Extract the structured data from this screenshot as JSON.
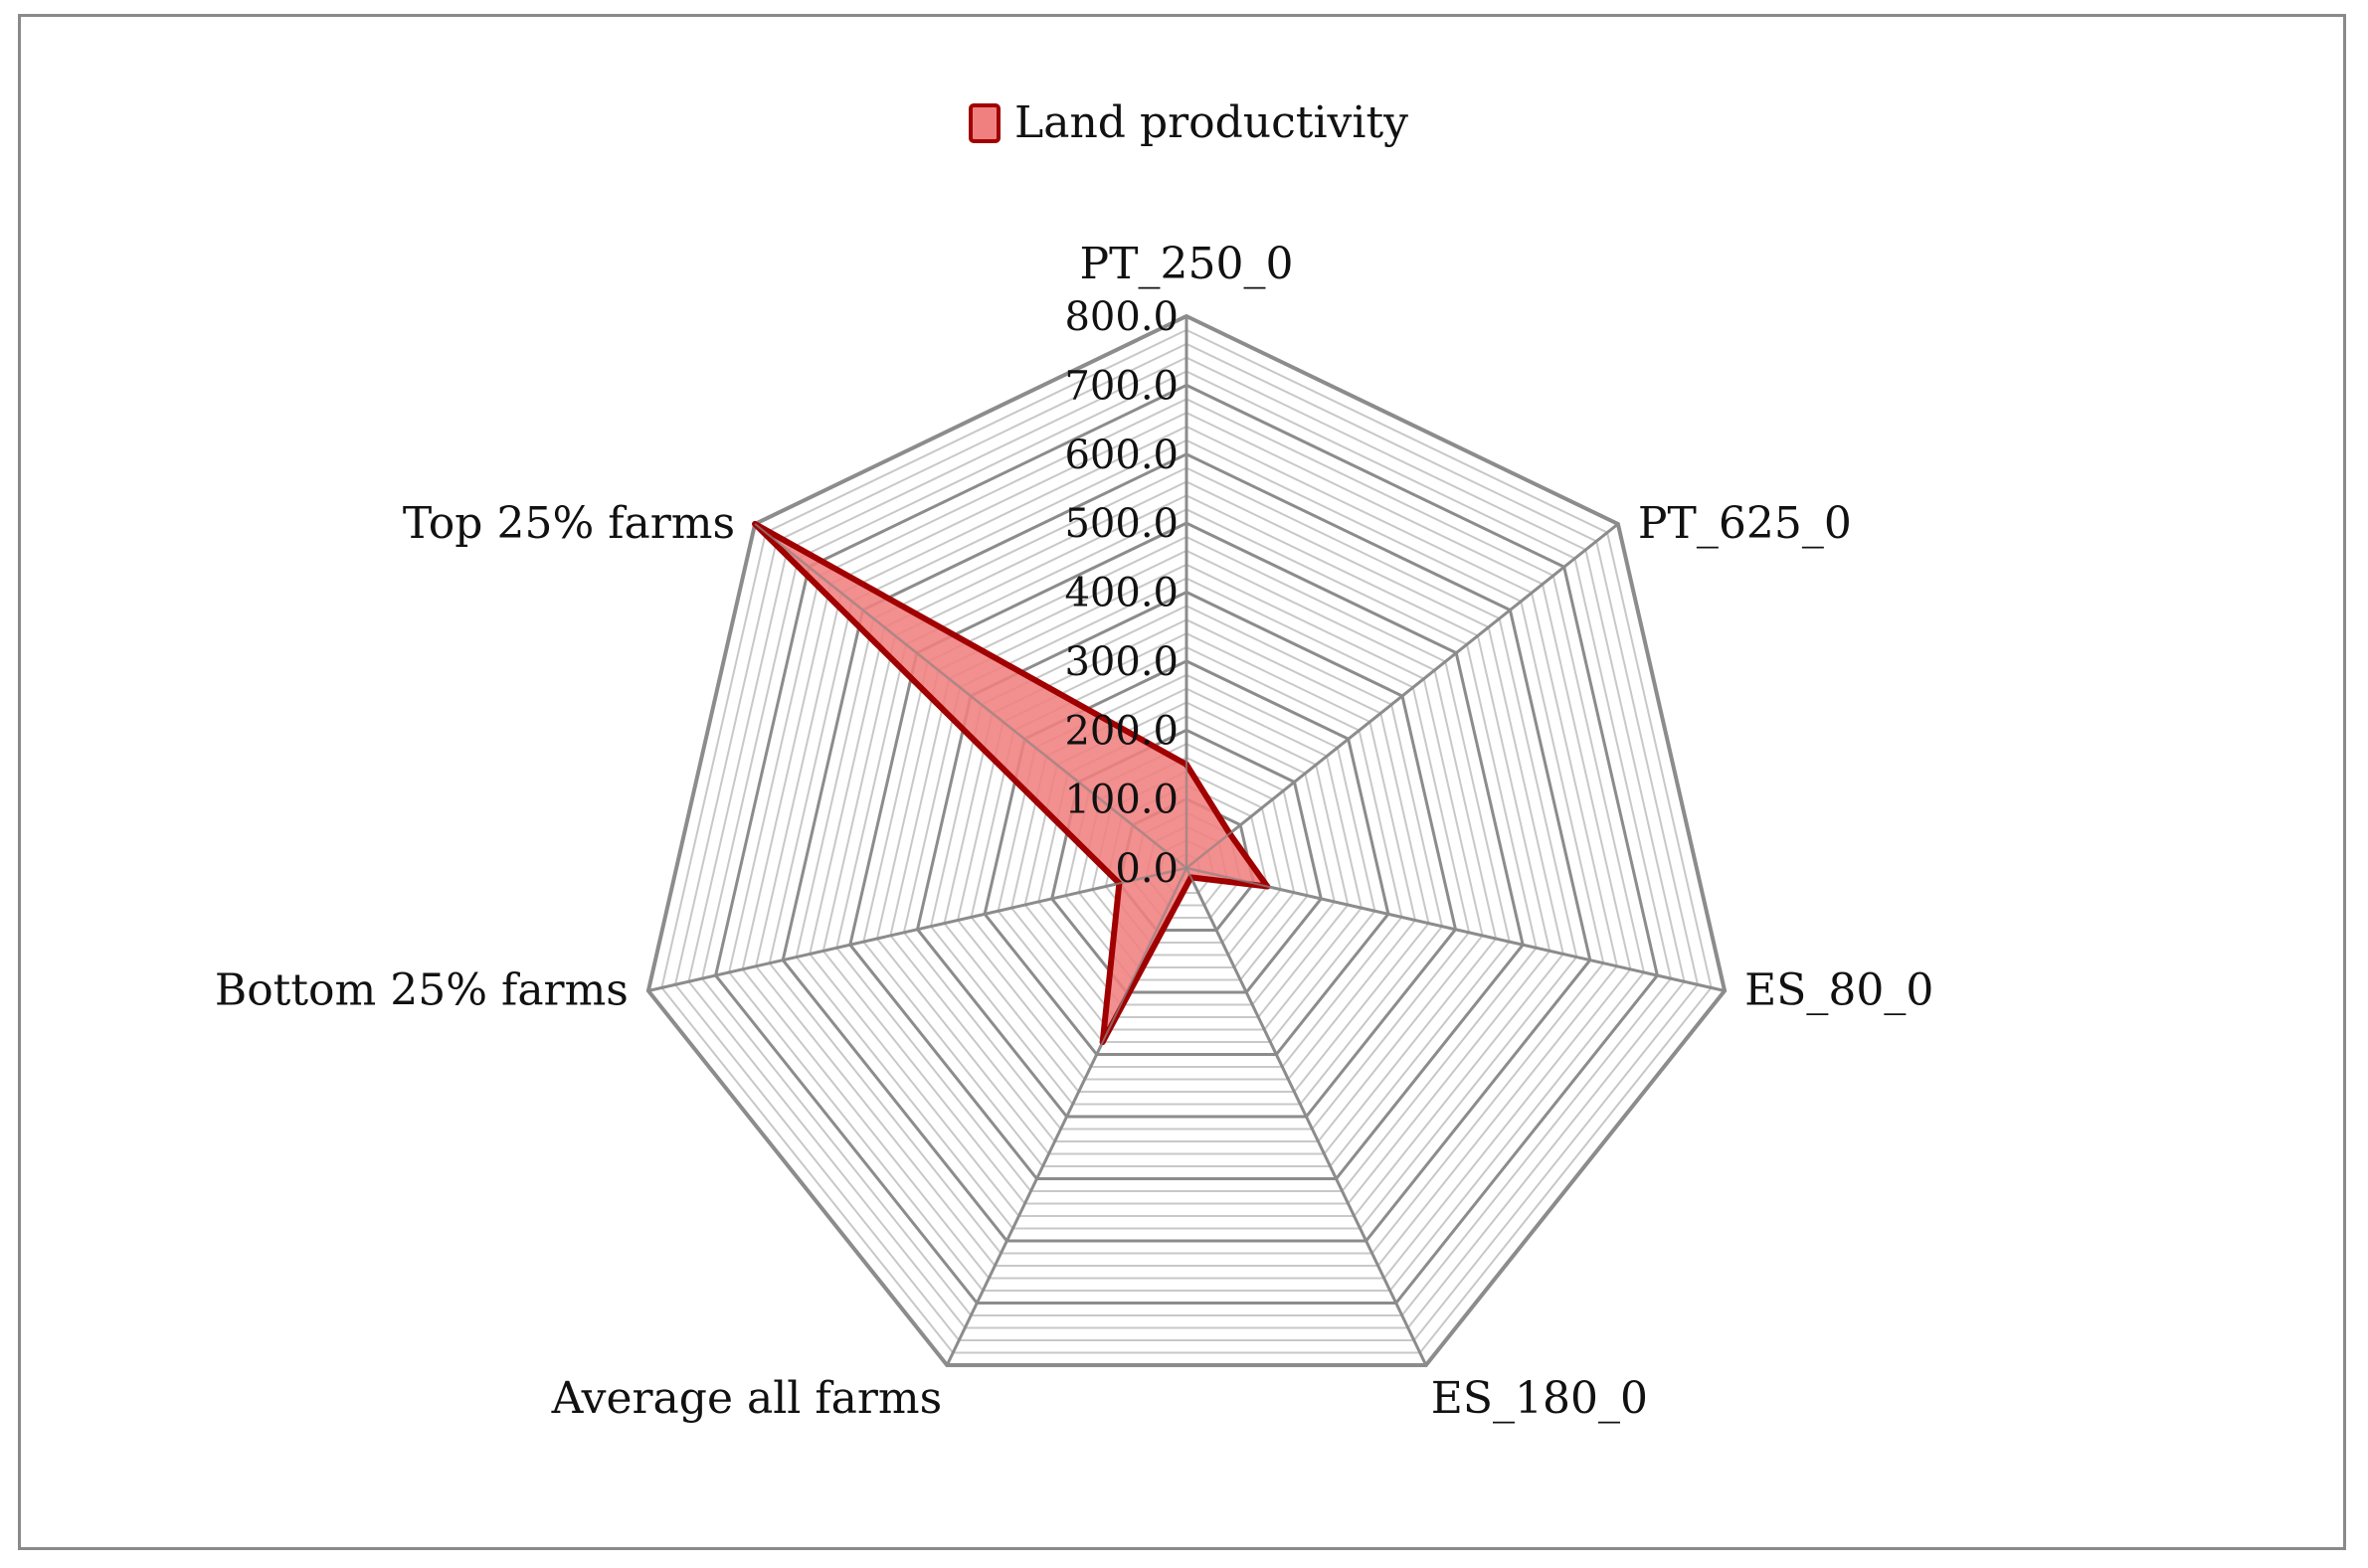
{
  "chart_data": {
    "type": "radar",
    "title": "",
    "categories": [
      "PT_250_0",
      "PT_625_0",
      "ES_80_0",
      "ES_180_0",
      "Average all farms",
      "Bottom 25% farms",
      "Top 25% farms"
    ],
    "series": [
      {
        "name": "Land productivity",
        "values": [
          150,
          80,
          120,
          15,
          280,
          100,
          800
        ]
      }
    ],
    "ylim": [
      0,
      800
    ],
    "major_step": 100,
    "minor_step": 20,
    "tick_labels": [
      "0.0",
      "100.0",
      "200.0",
      "300.0",
      "400.0",
      "500.0",
      "600.0",
      "700.0",
      "800.0"
    ],
    "legend_position": "top-center",
    "colors": {
      "series_fill": "#f08080",
      "series_stroke": "#a00000",
      "grid_major": "#8c8c8c",
      "grid_minor": "#c8c8c8",
      "spoke": "#8c8c8c",
      "frame": "#8a8a8a"
    }
  }
}
